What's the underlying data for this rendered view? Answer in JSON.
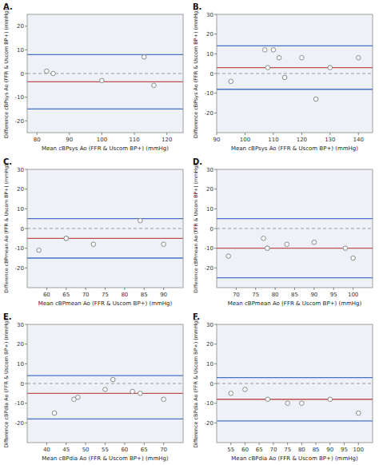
{
  "chart_data": [
    {
      "type": "scatter",
      "title": "A.",
      "x_label": "Mean cBPsys Ao (FFR & Uscom BP+) (mmHg)",
      "y_label": "Difference cBPsys Ao (FFR & Uscom BP+) (mmHg)",
      "xlim": [
        77,
        125
      ],
      "ylim": [
        -25,
        25
      ],
      "xticks": [
        80,
        90,
        100,
        110,
        120
      ],
      "yticks": [
        -20,
        -10,
        0,
        10,
        20
      ],
      "x": [
        83,
        85,
        100,
        113,
        116
      ],
      "values": [
        1,
        0,
        -3,
        7,
        -5
      ],
      "color": "#888888",
      "marker": "circle",
      "grid": false,
      "hlines": [
        {
          "value": 0,
          "color": "#999999",
          "line_style": "dashed"
        },
        {
          "value": -3.5,
          "color": "#c0504d",
          "line_style": "solid"
        },
        {
          "value": 8.0,
          "color": "#4472c4",
          "line_style": "solid"
        },
        {
          "value": -15.0,
          "color": "#4472c4",
          "line_style": "solid"
        }
      ]
    },
    {
      "type": "scatter",
      "title": "B.",
      "x_label": "Mean cBPsys Ao (FFR & Uscom BP+) (mmHg)",
      "y_label": "Difference cBPsys Ao (FFR & Uscom BP+) (mmHg)",
      "xlim": [
        90,
        145
      ],
      "ylim": [
        -30,
        30
      ],
      "xticks": [
        90,
        100,
        110,
        120,
        130,
        140
      ],
      "yticks": [
        -20,
        -10,
        0,
        10,
        20,
        30
      ],
      "x": [
        95,
        107,
        108,
        110,
        112,
        114,
        120,
        125,
        130,
        140
      ],
      "values": [
        -4,
        12,
        3,
        12,
        8,
        -2,
        8,
        -13,
        3,
        8
      ],
      "color": "#888888",
      "marker": "circle",
      "grid": false,
      "hlines": [
        {
          "value": 0,
          "color": "#999999",
          "line_style": "dashed"
        },
        {
          "value": 3.0,
          "color": "#c0504d",
          "line_style": "solid"
        },
        {
          "value": 14.0,
          "color": "#4472c4",
          "line_style": "solid"
        },
        {
          "value": -8.0,
          "color": "#4472c4",
          "line_style": "solid"
        }
      ]
    },
    {
      "type": "scatter",
      "title": "C.",
      "x_label": "Mean cBPmean Ao (FFR & Uscom BP+) (mmHg)",
      "y_label": "Difference cBPmean Ao (FFR & Uscom BP+) (mmHg)",
      "xlim": [
        55,
        95
      ],
      "ylim": [
        -30,
        30
      ],
      "xticks": [
        60,
        65,
        70,
        75,
        80,
        85,
        90
      ],
      "yticks": [
        -20,
        -10,
        0,
        10,
        20,
        30
      ],
      "x": [
        58,
        65,
        65,
        72,
        84,
        90
      ],
      "values": [
        -11,
        -5,
        -5,
        -8,
        4,
        -8
      ],
      "color": "#888888",
      "marker": "circle",
      "grid": false,
      "hlines": [
        {
          "value": 0,
          "color": "#999999",
          "line_style": "dashed"
        },
        {
          "value": -5.0,
          "color": "#c0504d",
          "line_style": "solid"
        },
        {
          "value": 5.0,
          "color": "#4472c4",
          "line_style": "solid"
        },
        {
          "value": -15.0,
          "color": "#4472c4",
          "line_style": "solid"
        }
      ]
    },
    {
      "type": "scatter",
      "title": "D.",
      "x_label": "Mean cBPmean Ao (FFR & Uscom BP+) (mmHg)",
      "y_label": "Difference cBPmean Ao (FFR & Uscom BP+) (mmHg)",
      "xlim": [
        65,
        105
      ],
      "ylim": [
        -30,
        30
      ],
      "xticks": [
        70,
        75,
        80,
        85,
        90,
        95,
        100
      ],
      "yticks": [
        -20,
        -10,
        0,
        10,
        20,
        30
      ],
      "x": [
        68,
        77,
        78,
        78,
        83,
        90,
        98,
        100
      ],
      "values": [
        -14,
        -5,
        -10,
        -10,
        -8,
        -7,
        -10,
        -15
      ],
      "color": "#888888",
      "marker": "circle",
      "grid": false,
      "hlines": [
        {
          "value": 0,
          "color": "#999999",
          "line_style": "dashed"
        },
        {
          "value": -10.0,
          "color": "#c0504d",
          "line_style": "solid"
        },
        {
          "value": 5.0,
          "color": "#4472c4",
          "line_style": "solid"
        },
        {
          "value": -25.0,
          "color": "#4472c4",
          "line_style": "solid"
        }
      ]
    },
    {
      "type": "scatter",
      "title": "E.",
      "x_label": "Mean cBPdia Ao (FFR & Uscom BP+) (mmHg)",
      "y_label": "Difference cBPdia Ao (FFR & Uscom BP+) (mmHg)",
      "xlim": [
        35,
        75
      ],
      "ylim": [
        -30,
        30
      ],
      "xticks": [
        40,
        45,
        50,
        55,
        60,
        65,
        70
      ],
      "yticks": [
        -20,
        -10,
        0,
        10,
        20,
        30
      ],
      "x": [
        42,
        47,
        48,
        55,
        57,
        62,
        64,
        70
      ],
      "values": [
        -15,
        -8,
        -7,
        -3,
        2,
        -4,
        -5,
        -8
      ],
      "color": "#888888",
      "marker": "circle",
      "grid": false,
      "hlines": [
        {
          "value": 0,
          "color": "#999999",
          "line_style": "dashed"
        },
        {
          "value": -5.0,
          "color": "#c0504d",
          "line_style": "solid"
        },
        {
          "value": 4.0,
          "color": "#4472c4",
          "line_style": "solid"
        },
        {
          "value": -18.0,
          "color": "#4472c4",
          "line_style": "solid"
        }
      ]
    },
    {
      "type": "scatter",
      "title": "F.",
      "x_label": "Mean cBPdia Ao (FFR & Uscom BP+) (mmHg)",
      "y_label": "Difference cBPdia Ao (FFR & Uscom BP+) (mmHg)",
      "xlim": [
        50,
        105
      ],
      "ylim": [
        -30,
        30
      ],
      "xticks": [
        55,
        60,
        65,
        70,
        75,
        80,
        85,
        90,
        95,
        100
      ],
      "yticks": [
        -20,
        -10,
        0,
        10,
        20,
        30
      ],
      "x": [
        55,
        60,
        68,
        75,
        80,
        90,
        100
      ],
      "values": [
        -5,
        -3,
        -8,
        -10,
        -10,
        -8,
        -15
      ],
      "color": "#888888",
      "marker": "circle",
      "grid": false,
      "hlines": [
        {
          "value": 0,
          "color": "#999999",
          "line_style": "dashed"
        },
        {
          "value": -8.0,
          "color": "#c0504d",
          "line_style": "solid"
        },
        {
          "value": 3.0,
          "color": "#4472c4",
          "line_style": "solid"
        },
        {
          "value": -19.0,
          "color": "#4472c4",
          "line_style": "solid"
        }
      ]
    }
  ]
}
